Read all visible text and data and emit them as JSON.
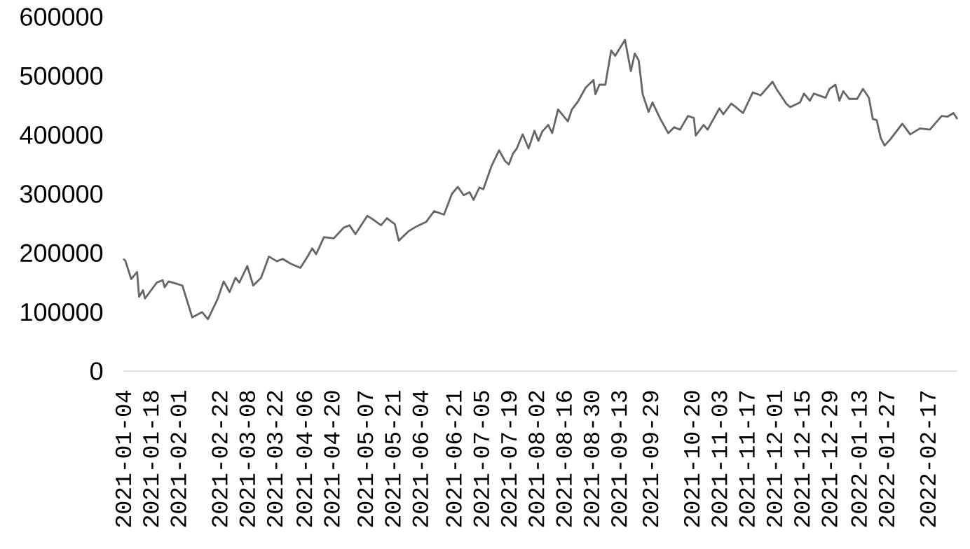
{
  "chart_data": {
    "type": "line",
    "color": "#666666",
    "x": [
      "2021-01-04",
      "2021-01-05",
      "2021-01-08",
      "2021-01-11",
      "2021-01-12",
      "2021-01-14",
      "2021-01-15",
      "2021-01-21",
      "2021-01-24",
      "2021-01-25",
      "2021-01-27",
      "2021-01-31",
      "2021-02-03",
      "2021-02-08",
      "2021-02-13",
      "2021-02-16",
      "2021-02-21",
      "2021-02-24",
      "2021-02-27",
      "2021-03-02",
      "2021-03-04",
      "2021-03-08",
      "2021-03-11",
      "2021-03-15",
      "2021-03-19",
      "2021-03-23",
      "2021-03-26",
      "2021-03-30",
      "2021-04-04",
      "2021-04-08",
      "2021-04-10",
      "2021-04-12",
      "2021-04-16",
      "2021-04-21",
      "2021-04-26",
      "2021-04-29",
      "2021-05-02",
      "2021-05-08",
      "2021-05-10",
      "2021-05-15",
      "2021-05-18",
      "2021-05-22",
      "2021-05-24",
      "2021-05-29",
      "2021-06-02",
      "2021-06-07",
      "2021-06-11",
      "2021-06-16",
      "2021-06-20",
      "2021-06-23",
      "2021-06-26",
      "2021-06-29",
      "2021-07-01",
      "2021-07-04",
      "2021-07-06",
      "2021-07-10",
      "2021-07-14",
      "2021-07-17",
      "2021-07-19",
      "2021-07-21",
      "2021-07-23",
      "2021-07-26",
      "2021-07-29",
      "2021-08-01",
      "2021-08-03",
      "2021-08-05",
      "2021-08-08",
      "2021-08-10",
      "2021-08-13",
      "2021-08-18",
      "2021-08-20",
      "2021-08-23",
      "2021-08-27",
      "2021-08-31",
      "2021-09-01",
      "2021-09-03",
      "2021-09-06",
      "2021-09-09",
      "2021-09-11",
      "2021-09-16",
      "2021-09-19",
      "2021-09-21",
      "2021-09-23",
      "2021-09-25",
      "2021-09-28",
      "2021-09-30",
      "2021-10-04",
      "2021-10-08",
      "2021-10-11",
      "2021-10-14",
      "2021-10-18",
      "2021-10-21",
      "2021-10-22",
      "2021-10-26",
      "2021-10-28",
      "2021-11-03",
      "2021-11-05",
      "2021-11-09",
      "2021-11-11",
      "2021-11-15",
      "2021-11-20",
      "2021-11-24",
      "2021-11-30",
      "2021-12-02",
      "2021-12-07",
      "2021-12-09",
      "2021-12-14",
      "2021-12-16",
      "2021-12-19",
      "2021-12-21",
      "2021-12-27",
      "2021-12-29",
      "2022-01-01",
      "2022-01-03",
      "2022-01-05",
      "2022-01-08",
      "2022-01-12",
      "2022-01-15",
      "2022-01-18",
      "2022-01-20",
      "2022-01-22",
      "2022-01-24",
      "2022-01-26",
      "2022-01-29",
      "2022-02-04",
      "2022-02-08",
      "2022-02-13",
      "2022-02-18",
      "2022-02-24",
      "2022-02-27",
      "2022-03-02",
      "2022-03-04"
    ],
    "values": [
      190000,
      187000,
      156000,
      168000,
      126000,
      137000,
      123000,
      150000,
      154000,
      142000,
      152000,
      148000,
      145000,
      91000,
      100000,
      88000,
      123000,
      152000,
      134000,
      158000,
      150000,
      178000,
      145000,
      158000,
      194000,
      186000,
      190000,
      182000,
      175000,
      196000,
      208000,
      198000,
      227000,
      225000,
      243000,
      247000,
      232000,
      263000,
      259000,
      247000,
      259000,
      249000,
      221000,
      237000,
      245000,
      253000,
      271000,
      265000,
      300000,
      312000,
      298000,
      303000,
      290000,
      311000,
      308000,
      346000,
      374000,
      356000,
      350000,
      368000,
      377000,
      401000,
      377000,
      407000,
      390000,
      406000,
      417000,
      403000,
      443000,
      423000,
      443000,
      456000,
      480000,
      493000,
      469000,
      485000,
      485000,
      543000,
      534000,
      561000,
      508000,
      538000,
      526000,
      469000,
      439000,
      455000,
      427000,
      403000,
      413000,
      409000,
      432000,
      429000,
      399000,
      417000,
      409000,
      445000,
      435000,
      453000,
      448000,
      437000,
      472000,
      467000,
      490000,
      478000,
      453000,
      447000,
      455000,
      470000,
      458000,
      470000,
      463000,
      478000,
      485000,
      458000,
      474000,
      461000,
      461000,
      478000,
      463000,
      427000,
      425000,
      395000,
      382000,
      393000,
      419000,
      401000,
      411000,
      409000,
      432000,
      431000,
      437000,
      427000
    ],
    "xlim": [
      "2021-01-04",
      "2022-03-04"
    ],
    "ylim": [
      0,
      600000
    ],
    "yticks": [
      0,
      100000,
      200000,
      300000,
      400000,
      500000,
      600000
    ],
    "xticks": [
      "2021-01-04",
      "2021-01-18",
      "2021-02-01",
      "2021-02-22",
      "2021-03-08",
      "2021-03-22",
      "2021-04-06",
      "2021-04-20",
      "2021-05-07",
      "2021-05-21",
      "2021-06-04",
      "2021-06-21",
      "2021-07-05",
      "2021-07-19",
      "2021-08-02",
      "2021-08-16",
      "2021-08-30",
      "2021-09-13",
      "2021-09-29",
      "2021-10-20",
      "2021-11-03",
      "2021-11-17",
      "2021-12-01",
      "2021-12-15",
      "2021-12-29",
      "2022-01-13",
      "2022-01-27",
      "2022-02-17"
    ]
  }
}
